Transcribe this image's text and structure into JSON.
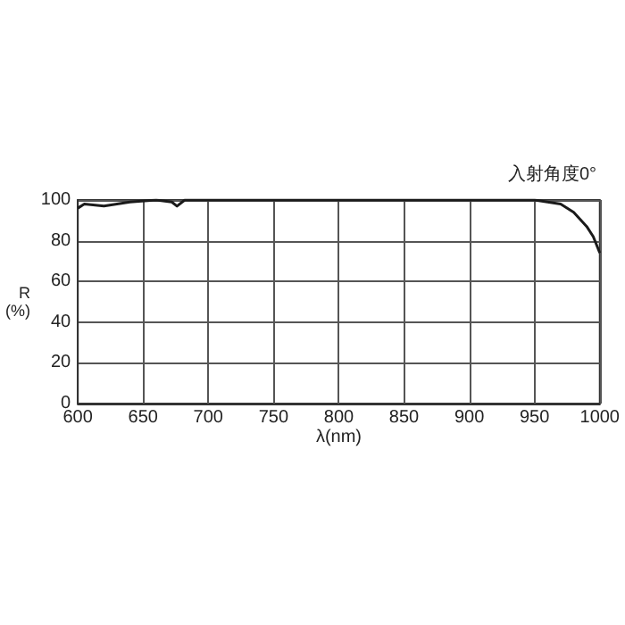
{
  "chart_data": {
    "type": "line",
    "xlabel": "λ(nm)",
    "ylabel": "R\n(%)",
    "annotations": [
      "入射角度0°"
    ],
    "series": [
      {
        "color": "#1a1a1a",
        "x": [
          600,
          605,
          620,
          640,
          660,
          672,
          676,
          682,
          700,
          800,
          900,
          950,
          960,
          970,
          980,
          990,
          995,
          1000
        ],
        "values": [
          96,
          98,
          97,
          99,
          100,
          99,
          97,
          100,
          100,
          100,
          100,
          100,
          99,
          98,
          94,
          87,
          82,
          74
        ]
      }
    ],
    "xlim": [
      600,
      1000
    ],
    "xticks": [
      600,
      650,
      700,
      750,
      800,
      850,
      900,
      950,
      1000
    ],
    "ylim": [
      0,
      100
    ],
    "yticks": [
      0,
      20,
      40,
      60,
      80,
      100
    ],
    "grid": true,
    "marker": "none",
    "line_style": "solid"
  }
}
